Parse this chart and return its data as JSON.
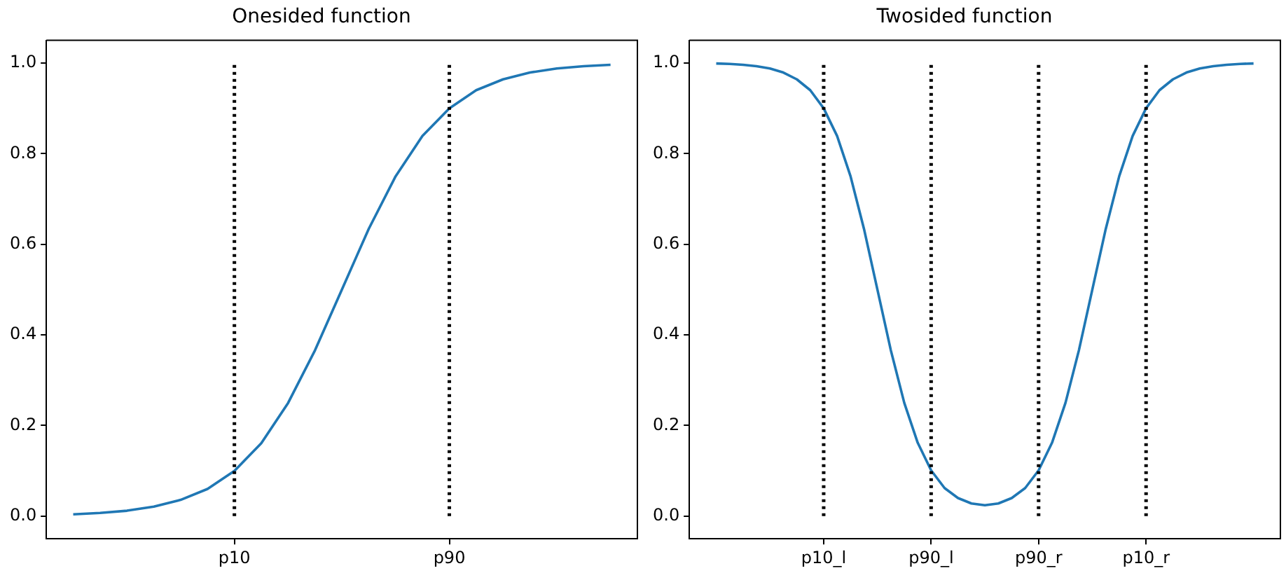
{
  "chart_data": [
    {
      "type": "line",
      "title": "Onesided function",
      "categories": [
        null,
        null,
        null,
        null,
        null,
        null,
        "p10",
        null,
        null,
        null,
        null,
        null,
        null,
        null,
        "p90",
        null,
        null,
        null,
        null,
        null,
        null
      ],
      "series": [
        {
          "color": "#1f77b4",
          "values": [
            0.004,
            0.007,
            0.012,
            0.021,
            0.036,
            0.06,
            0.1,
            0.161,
            0.25,
            0.366,
            0.5,
            0.634,
            0.75,
            0.839,
            0.9,
            0.94,
            0.964,
            0.979,
            0.988,
            0.993,
            0.996
          ]
        }
      ],
      "ylim": [
        -0.05,
        1.05
      ],
      "yticks": [
        {
          "value": 0,
          "label": "0.0"
        },
        {
          "value": 0.2,
          "label": "0.2"
        },
        {
          "value": 0.4,
          "label": "0.4"
        },
        {
          "value": 0.6,
          "label": "0.6"
        },
        {
          "value": 0.8,
          "label": "0.8"
        },
        {
          "value": 1,
          "label": "1.0"
        }
      ],
      "ref_lines": [
        {
          "axis": "x",
          "value": "p10",
          "color": "#000000",
          "line_style": "dotted"
        },
        {
          "axis": "x",
          "value": "p90",
          "color": "#000000",
          "line_style": "dotted"
        }
      ],
      "grid": false,
      "legend": false,
      "marker": "none",
      "line_style": "solid"
    },
    {
      "type": "line",
      "title": "Twosided function",
      "categories": [
        null,
        null,
        null,
        null,
        null,
        null,
        null,
        null,
        "p10_l",
        null,
        null,
        null,
        null,
        null,
        null,
        null,
        "p90_l",
        null,
        null,
        null,
        null,
        null,
        null,
        null,
        "p90_r",
        null,
        null,
        null,
        null,
        null,
        null,
        null,
        "p10_r",
        null,
        null,
        null,
        null,
        null,
        null,
        null,
        null
      ],
      "series": [
        {
          "color": "#1f77b4",
          "values": [
            0.999,
            0.998,
            0.996,
            0.993,
            0.988,
            0.979,
            0.964,
            0.94,
            0.9,
            0.839,
            0.75,
            0.634,
            0.5,
            0.366,
            0.25,
            0.162,
            0.101,
            0.062,
            0.04,
            0.028,
            0.024,
            0.028,
            0.04,
            0.062,
            0.101,
            0.162,
            0.25,
            0.366,
            0.5,
            0.634,
            0.75,
            0.839,
            0.9,
            0.94,
            0.964,
            0.979,
            0.988,
            0.993,
            0.996,
            0.998,
            0.999
          ]
        }
      ],
      "ylim": [
        -0.05,
        1.05
      ],
      "yticks": [
        {
          "value": 0,
          "label": "0.0"
        },
        {
          "value": 0.2,
          "label": "0.2"
        },
        {
          "value": 0.4,
          "label": "0.4"
        },
        {
          "value": 0.6,
          "label": "0.6"
        },
        {
          "value": 0.8,
          "label": "0.8"
        },
        {
          "value": 1,
          "label": "1.0"
        }
      ],
      "ref_lines": [
        {
          "axis": "x",
          "value": "p10_l",
          "color": "#000000",
          "line_style": "dotted"
        },
        {
          "axis": "x",
          "value": "p90_l",
          "color": "#000000",
          "line_style": "dotted"
        },
        {
          "axis": "x",
          "value": "p90_r",
          "color": "#000000",
          "line_style": "dotted"
        },
        {
          "axis": "x",
          "value": "p10_r",
          "color": "#000000",
          "line_style": "dotted"
        }
      ],
      "grid": false,
      "legend": false,
      "marker": "none",
      "line_style": "solid"
    }
  ]
}
